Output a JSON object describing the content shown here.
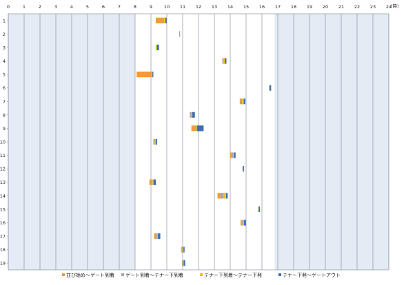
{
  "chart_data": {
    "type": "bar",
    "orientation": "horizontal-stacked",
    "x_unit_label": "(時)",
    "x_ticks": [
      "0",
      "1",
      "2",
      "3",
      "4",
      "5",
      "6",
      "7",
      "8",
      "9",
      "10",
      "11",
      "12",
      "13",
      "14",
      "15",
      "16",
      "17",
      "18",
      "19",
      "20",
      "21",
      "22",
      "23",
      "24"
    ],
    "xlim": [
      0,
      24
    ],
    "y_ticks": [
      "1",
      "2",
      "3",
      "4",
      "5",
      "6",
      "7",
      "8",
      "9",
      "10",
      "11",
      "12",
      "13",
      "14",
      "15",
      "16",
      "17",
      "18",
      "19"
    ],
    "shaded_ranges": [
      [
        0,
        8
      ],
      [
        16.8,
        24
      ]
    ],
    "grid": true,
    "legend_position": "bottom",
    "series": [
      {
        "name": "並び始め～ゲート到着",
        "color": "#f39b3b"
      },
      {
        "name": "ゲート到着～テナー下到着",
        "color": "#a6a6a6"
      },
      {
        "name": "テナー下到着～テナー下発",
        "color": "#f2c200"
      },
      {
        "name": "テナー下発～ゲートアウト",
        "color": "#3f6fb0"
      }
    ],
    "rows": [
      {
        "row": "1",
        "start": 9.3,
        "segments": [
          0.45,
          0.08,
          0.08,
          0.08
        ]
      },
      {
        "row": "2",
        "start": 10.78,
        "segments": [
          0,
          0.06,
          0,
          0
        ]
      },
      {
        "row": "3",
        "start": 9.3,
        "segments": [
          0,
          0.05,
          0.04,
          0.12
        ]
      },
      {
        "row": "4",
        "start": 13.5,
        "segments": [
          0,
          0.06,
          0.1,
          0.1
        ]
      },
      {
        "row": "5",
        "start": 8.1,
        "segments": [
          0.9,
          0.04,
          0.05,
          0.06
        ]
      },
      {
        "row": "6",
        "start": 16.45,
        "segments": [
          0,
          0.05,
          0,
          0.08
        ]
      },
      {
        "row": "7",
        "start": 14.6,
        "segments": [
          0.05,
          0.1,
          0.1,
          0.1
        ]
      },
      {
        "row": "8",
        "start": 11.45,
        "segments": [
          0,
          0.1,
          0.05,
          0.17
        ]
      },
      {
        "row": "9",
        "start": 11.55,
        "segments": [
          0.25,
          0.05,
          0.05,
          0.42
        ]
      },
      {
        "row": "10",
        "start": 9.15,
        "segments": [
          0,
          0.08,
          0.08,
          0.08
        ]
      },
      {
        "row": "11",
        "start": 14.0,
        "segments": [
          0.1,
          0.08,
          0.06,
          0.1
        ]
      },
      {
        "row": "12",
        "start": 14.77,
        "segments": [
          0,
          0.05,
          0,
          0.05
        ]
      },
      {
        "row": "13",
        "start": 8.9,
        "segments": [
          0.15,
          0.05,
          0.06,
          0.15
        ]
      },
      {
        "row": "14",
        "start": 13.2,
        "segments": [
          0.18,
          0.18,
          0.18,
          0.1
        ]
      },
      {
        "row": "15",
        "start": 15.75,
        "segments": [
          0,
          0.07,
          0,
          0.05
        ]
      },
      {
        "row": "16",
        "start": 14.65,
        "segments": [
          0.06,
          0.08,
          0.08,
          0.12
        ]
      },
      {
        "row": "17",
        "start": 9.2,
        "segments": [
          0.12,
          0.06,
          0.06,
          0.15
        ]
      },
      {
        "row": "18",
        "start": 10.9,
        "segments": [
          0.05,
          0.05,
          0.05,
          0.07
        ]
      },
      {
        "row": "19",
        "start": 10.95,
        "segments": [
          0,
          0.05,
          0.06,
          0.1
        ]
      }
    ]
  }
}
